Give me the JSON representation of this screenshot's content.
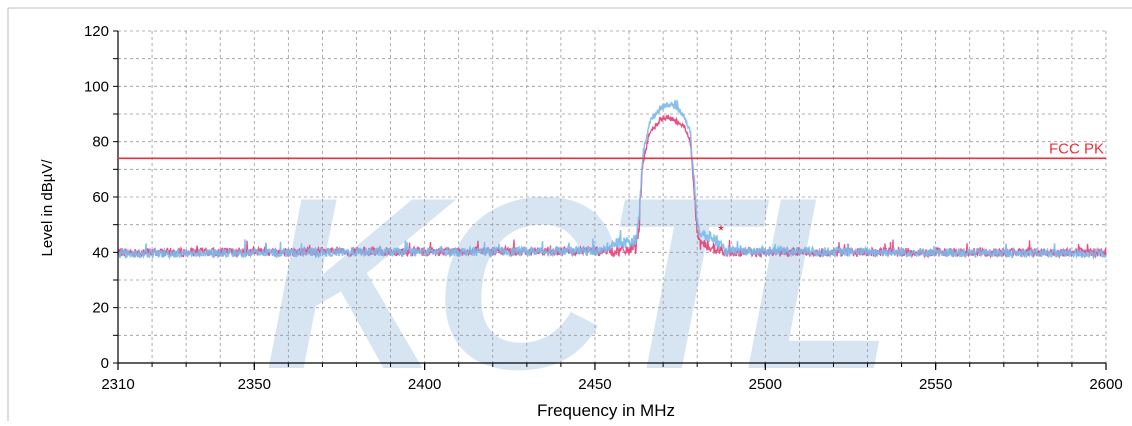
{
  "chart_data": {
    "type": "line",
    "xlabel": "Frequency in MHz",
    "ylabel": "Level in dBµV/",
    "xlim": [
      2310,
      2600
    ],
    "ylim": [
      0,
      120
    ],
    "x_ticks": [
      2310,
      2350,
      2400,
      2450,
      2500,
      2550,
      2600
    ],
    "y_ticks": [
      0,
      20,
      40,
      60,
      80,
      100,
      120
    ],
    "grid": true,
    "limit_line": {
      "label": "FCC PK",
      "value": 74,
      "color": "#e8323c"
    },
    "watermark": "KCTL",
    "marker": {
      "x": 2487,
      "y": 48.5,
      "symbol": "*",
      "color": "#d40000"
    },
    "series": [
      {
        "color": "#e8457a",
        "points": [
          [
            2310,
            40
          ],
          [
            2458,
            40.5
          ],
          [
            2462,
            41.5
          ],
          [
            2463,
            50
          ],
          [
            2464,
            72
          ],
          [
            2466,
            83
          ],
          [
            2469,
            87.5
          ],
          [
            2471,
            88.5
          ],
          [
            2473,
            88
          ],
          [
            2476,
            86
          ],
          [
            2478,
            80
          ],
          [
            2479,
            65
          ],
          [
            2480,
            47
          ],
          [
            2481,
            43
          ],
          [
            2484,
            42
          ],
          [
            2486,
            41
          ],
          [
            2488,
            40
          ],
          [
            2600,
            40
          ]
        ]
      },
      {
        "color": "#7ab8ec",
        "points": [
          [
            2310,
            39.5
          ],
          [
            2452,
            40.5
          ],
          [
            2455,
            43
          ],
          [
            2458,
            43.5
          ],
          [
            2462,
            44
          ],
          [
            2463,
            53
          ],
          [
            2464,
            75
          ],
          [
            2466,
            87
          ],
          [
            2469,
            92
          ],
          [
            2471,
            93.5
          ],
          [
            2473,
            93
          ],
          [
            2476,
            90
          ],
          [
            2478,
            83
          ],
          [
            2479,
            67
          ],
          [
            2480,
            52
          ],
          [
            2481,
            46
          ],
          [
            2484,
            45.5
          ],
          [
            2486,
            44
          ],
          [
            2488,
            40.5
          ],
          [
            2600,
            39.5
          ]
        ]
      }
    ]
  }
}
